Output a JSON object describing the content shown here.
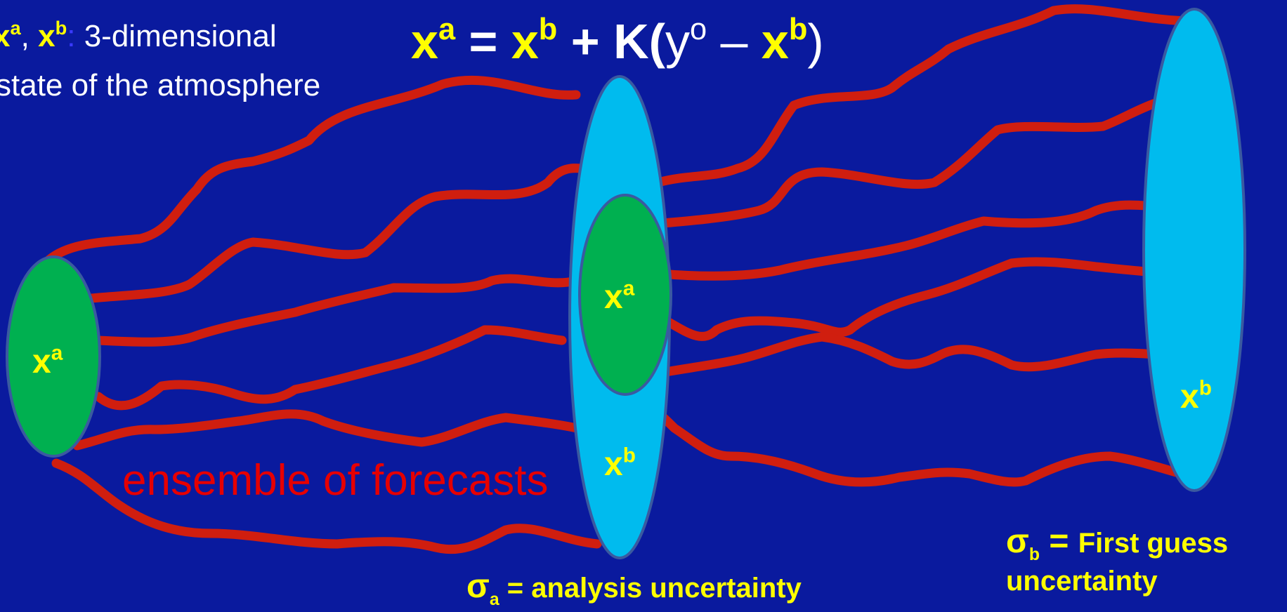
{
  "legend": {
    "symbol_a": "x",
    "sup_a": "a",
    "comma": ", ",
    "symbol_b": "x",
    "sup_b": "b",
    "colon": ":",
    "text_line1": " 3-dimensional",
    "text_line2": "state of the atmosphere"
  },
  "equation": {
    "lhs": "x",
    "lhs_sup": "a",
    "eq": " = ",
    "x1": "x",
    "x1_sup": "b",
    "plus": " + K(",
    "y": "y",
    "y_sup": "o",
    "minus": " – ",
    "x2": "x",
    "x2_sup": "b",
    "close": ")"
  },
  "ensemble_label": "ensemble of forecasts",
  "nodes": {
    "left_analysis": {
      "x": "x",
      "sup": "a"
    },
    "middle_analysis": {
      "x": "x",
      "sup": "a"
    },
    "middle_background": {
      "x": "x",
      "sup": "b"
    },
    "right_background": {
      "x": "x",
      "sup": "b"
    }
  },
  "sigma_a": {
    "sym": "σ",
    "sub": "a",
    "text": " = analysis uncertainty"
  },
  "sigma_b": {
    "sym": "σ",
    "sub": "b",
    "eq": " = ",
    "text1": "First guess",
    "text2": "uncertainty"
  },
  "colors": {
    "background": "#0a1a9e",
    "forecast_line": "#d01e0f",
    "analysis_ellipse": "#00b050",
    "background_ellipse": "#00bbee",
    "highlight_text": "#ffff00",
    "ensemble_label": "#e60000"
  }
}
